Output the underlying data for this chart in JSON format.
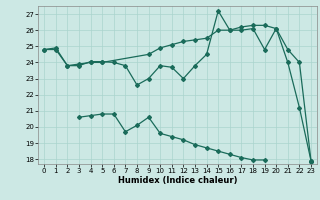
{
  "xlabel": "Humidex (Indice chaleur)",
  "background_color": "#cce8e4",
  "grid_color": "#aad4ce",
  "line_color": "#1a6b5a",
  "ylim": [
    17.7,
    27.5
  ],
  "xlim": [
    -0.5,
    23.5
  ],
  "yticks": [
    18,
    19,
    20,
    21,
    22,
    23,
    24,
    25,
    26,
    27
  ],
  "xticks": [
    0,
    1,
    2,
    3,
    4,
    5,
    6,
    7,
    8,
    9,
    10,
    11,
    12,
    13,
    14,
    15,
    16,
    17,
    18,
    19,
    20,
    21,
    22,
    23
  ],
  "line1_x": [
    0,
    1,
    2,
    3,
    4,
    5,
    6,
    7,
    8,
    9,
    10,
    11,
    12,
    13,
    14,
    15,
    16,
    17,
    18,
    19,
    20,
    21,
    22,
    23
  ],
  "line1_y": [
    24.8,
    24.9,
    23.8,
    23.8,
    24.05,
    24.05,
    24.0,
    23.8,
    22.6,
    23.0,
    23.8,
    23.7,
    23.0,
    23.8,
    24.5,
    27.2,
    26.0,
    26.2,
    26.3,
    26.3,
    26.1,
    24.8,
    24.0,
    17.9
  ],
  "line2_x": [
    0,
    1,
    2,
    3,
    4,
    5,
    9,
    10,
    11,
    12,
    13,
    14,
    15,
    16,
    17,
    18,
    19,
    20,
    21,
    22,
    23
  ],
  "line2_y": [
    24.8,
    24.8,
    23.8,
    23.9,
    24.0,
    24.0,
    24.5,
    24.9,
    25.1,
    25.3,
    25.4,
    25.5,
    26.0,
    26.0,
    26.0,
    26.1,
    24.8,
    26.1,
    24.0,
    21.2,
    17.9
  ],
  "line3_x": [
    3,
    4,
    5,
    6,
    7,
    8,
    9,
    10,
    11,
    12,
    13,
    14,
    15,
    16,
    17,
    18,
    19,
    20,
    21,
    22,
    23
  ],
  "line3_y": [
    20.6,
    20.7,
    20.8,
    20.8,
    19.7,
    20.1,
    20.6,
    19.6,
    19.4,
    19.2,
    18.9,
    18.7,
    18.5,
    18.3,
    18.1,
    17.95,
    17.95,
    null,
    null,
    null,
    17.85
  ]
}
